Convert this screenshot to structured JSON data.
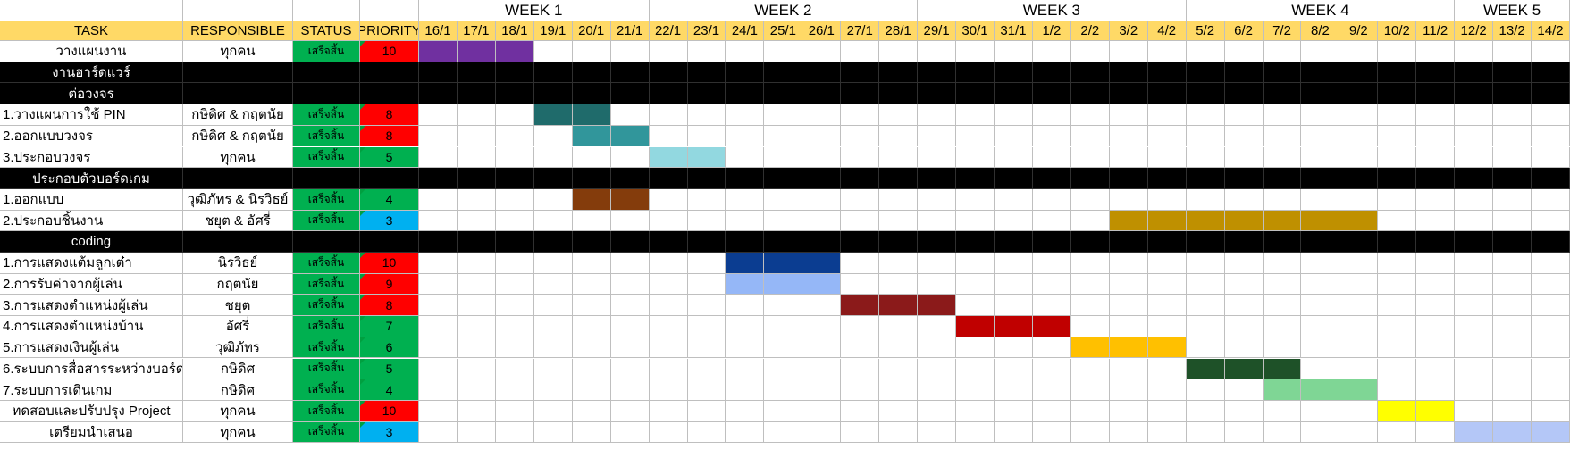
{
  "header": {
    "task": "TASK",
    "responsible": "RESPONSIBLE",
    "status": "STATUS",
    "priority": "PRIORITY"
  },
  "weeks": [
    {
      "label": "WEEK 1",
      "start": 0,
      "span": 6
    },
    {
      "label": "WEEK 2",
      "start": 6,
      "span": 7
    },
    {
      "label": "WEEK 3",
      "start": 13,
      "span": 7
    },
    {
      "label": "WEEK 4",
      "start": 20,
      "span": 7
    },
    {
      "label": "WEEK 5",
      "start": 27,
      "span": 3
    }
  ],
  "days": [
    "16/1",
    "17/1",
    "18/1",
    "19/1",
    "20/1",
    "21/1",
    "22/1",
    "23/1",
    "24/1",
    "25/1",
    "26/1",
    "27/1",
    "28/1",
    "29/1",
    "30/1",
    "31/1",
    "1/2",
    "2/2",
    "3/2",
    "4/2",
    "5/2",
    "6/2",
    "7/2",
    "8/2",
    "9/2",
    "10/2",
    "11/2",
    "12/2",
    "13/2",
    "14/2"
  ],
  "priority_colors": {
    "red": "#ff0000",
    "green": "#00b050",
    "blue": "#00b0f0"
  },
  "rows": [
    {
      "kind": "task",
      "task": "วางแผนงาน",
      "align": "center",
      "responsible": "ทุกคน",
      "status": "เสร็จสิ้น",
      "priority": "10",
      "pcolor": "red",
      "bar_start": 0,
      "bar_len": 3,
      "bar_color": "#7030a0"
    },
    {
      "kind": "section",
      "task": "งานฮาร์ดแวร์"
    },
    {
      "kind": "section",
      "task": "ต่อวงจร"
    },
    {
      "kind": "task",
      "task": "1.วางแผนการใช้ PIN",
      "responsible": "กษิดิศ & กฤตนัย",
      "status": "เสร็จสิ้น",
      "priority": "8",
      "pcolor": "red",
      "bar_start": 3,
      "bar_len": 2,
      "bar_color": "#1f6b6b"
    },
    {
      "kind": "task",
      "task": "2.ออกแบบวงจร",
      "responsible": "กษิดิศ & กฤตนัย",
      "status": "เสร็จสิ้น",
      "priority": "8",
      "pcolor": "red",
      "bar_start": 4,
      "bar_len": 2,
      "bar_color": "#31969b"
    },
    {
      "kind": "task",
      "task": "3.ประกอบวงจร",
      "responsible": "ทุกคน",
      "status": "เสร็จสิ้น",
      "priority": "5",
      "pcolor": "green",
      "bar_start": 6,
      "bar_len": 2,
      "bar_color": "#92d8e0"
    },
    {
      "kind": "section",
      "task": "ประกอบตัวบอร์ดเกม"
    },
    {
      "kind": "task",
      "task": "1.ออกแบบ",
      "responsible": "วุฒิภัทร & นิรวิธย์",
      "status": "เสร็จสิ้น",
      "priority": "4",
      "pcolor": "green",
      "bar_start": 4,
      "bar_len": 2,
      "bar_color": "#843c0c"
    },
    {
      "kind": "task",
      "task": "2.ประกอบชิ้นงาน",
      "responsible": "ชยุต & อัศรี่",
      "status": "เสร็จสิ้น",
      "priority": "3",
      "pcolor": "blue",
      "bar_start": 18,
      "bar_len": 7,
      "bar_color": "#bf9000"
    },
    {
      "kind": "section",
      "task": "coding"
    },
    {
      "kind": "task",
      "task": "1.การแสดงแต้มลูกเต๋า",
      "responsible": "นิรวิธย์",
      "status": "เสร็จสิ้น",
      "priority": "10",
      "pcolor": "red",
      "bar_start": 8,
      "bar_len": 3,
      "bar_color": "#0b3d91"
    },
    {
      "kind": "task",
      "task": "2.การรับค่าจากผู้เล่น",
      "responsible": "กฤตนัย",
      "status": "เสร็จสิ้น",
      "priority": "9",
      "pcolor": "red",
      "bar_start": 8,
      "bar_len": 3,
      "bar_color": "#95b7f7"
    },
    {
      "kind": "task",
      "task": "3.การแสดงตำแหน่งผู้เล่น",
      "responsible": "ชยุต",
      "status": "เสร็จสิ้น",
      "priority": "8",
      "pcolor": "red",
      "bar_start": 11,
      "bar_len": 3,
      "bar_color": "#8b1a1a"
    },
    {
      "kind": "task",
      "task": "4.การแสดงตำแหน่งบ้าน",
      "responsible": "อัศรี่",
      "status": "เสร็จสิ้น",
      "priority": "7",
      "pcolor": "green",
      "bar_start": 14,
      "bar_len": 3,
      "bar_color": "#c00000"
    },
    {
      "kind": "task",
      "task": "5.การแสดงเงินผู้เล่น",
      "responsible": "วุฒิภัทร",
      "status": "เสร็จสิ้น",
      "priority": "6",
      "pcolor": "green",
      "bar_start": 17,
      "bar_len": 3,
      "bar_color": "#ffc000"
    },
    {
      "kind": "task",
      "task": "6.ระบบการสื่อสารระหว่างบอร์ด",
      "responsible": "กษิดิศ",
      "status": "เสร็จสิ้น",
      "priority": "5",
      "pcolor": "green",
      "bar_start": 20,
      "bar_len": 3,
      "bar_color": "#1e5128"
    },
    {
      "kind": "task",
      "task": "7.ระบบการเดินเกม",
      "responsible": "กษิดิศ",
      "status": "เสร็จสิ้น",
      "priority": "4",
      "pcolor": "green",
      "bar_start": 22,
      "bar_len": 3,
      "bar_color": "#7fd695"
    },
    {
      "kind": "task",
      "task": "ทดสอบและปรับปรุง Project",
      "align": "center",
      "responsible": "ทุกคน",
      "status": "เสร็จสิ้น",
      "priority": "10",
      "pcolor": "red",
      "bar_start": 25,
      "bar_len": 2,
      "bar_color": "#ffff00"
    },
    {
      "kind": "task",
      "task": "เตรียมนำเสนอ",
      "align": "center",
      "responsible": "ทุกคน",
      "status": "เสร็จสิ้น",
      "priority": "3",
      "pcolor": "blue",
      "bar_start": 27,
      "bar_len": 3,
      "bar_color": "#b4c7f7"
    }
  ]
}
